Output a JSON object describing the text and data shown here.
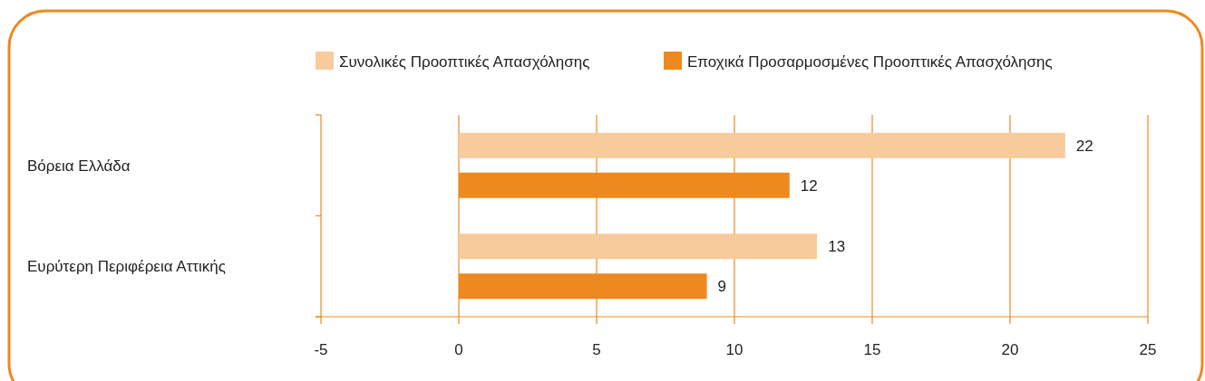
{
  "chart_data": {
    "type": "bar",
    "orientation": "horizontal",
    "categories": [
      "Βόρεια Ελλάδα",
      "Ευρύτερη Περιφέρεια Αττικής"
    ],
    "series": [
      {
        "name": "Συνολικές Προοπτικές Απασχόλησης",
        "color": "#f8cb9c",
        "values": [
          22,
          13
        ]
      },
      {
        "name": "Εποχικά Προσαρμοσμένες Προοπτικές Απασχόλησης",
        "color": "#ed891e",
        "values": [
          12,
          9
        ]
      }
    ],
    "xlim": [
      -5,
      25
    ],
    "xticks": [
      -5,
      0,
      5,
      10,
      15,
      20,
      25
    ],
    "grid": "x",
    "legend": "top",
    "data_labels": true
  }
}
